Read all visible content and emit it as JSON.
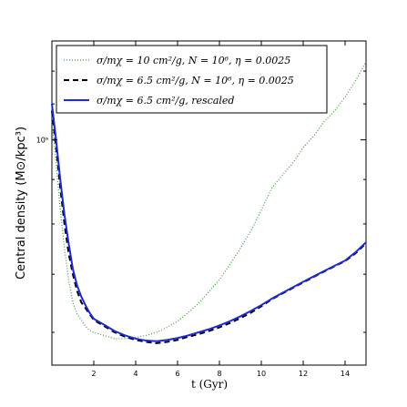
{
  "chart_data": {
    "type": "line",
    "xlabel": "t (Gyr)",
    "ylabel": "Central density (M⊙/kpc³)",
    "xlim": [
      0,
      15
    ],
    "ylim": [
      550000000,
      1300000000
    ],
    "yscale": "log",
    "x_ticks": [
      2,
      4,
      6,
      8,
      10,
      12,
      14
    ],
    "y_tick_labels": [
      "10⁹"
    ],
    "legend_position": "top",
    "grid": false,
    "series": [
      {
        "name": "σ/mχ = 10 cm²/g,  N = 10⁶,  η = 0.0025",
        "style": "dotted",
        "color": "#3a9a3a",
        "x": [
          0,
          0.2,
          0.4,
          0.6,
          0.8,
          1.0,
          1.2,
          1.4,
          1.6,
          1.8,
          2.0,
          2.5,
          3.0,
          3.5,
          4.0,
          4.5,
          5.0,
          5.5,
          6.0,
          6.5,
          7.0,
          7.5,
          8.0,
          8.5,
          9.0,
          9.5,
          10.0,
          10.5,
          11.0,
          11.5,
          12.0,
          12.5,
          13.0,
          13.5,
          14.0,
          14.5,
          15.0
        ],
        "y": [
          1050000000,
          940000000,
          830000000,
          750000000,
          690000000,
          650000000,
          630000000,
          620000000,
          610000000,
          603000000,
          600000000,
          595000000,
          590000000,
          590000000,
          592000000,
          595000000,
          600000000,
          608000000,
          618000000,
          632000000,
          648000000,
          668000000,
          690000000,
          718000000,
          750000000,
          785000000,
          830000000,
          880000000,
          910000000,
          940000000,
          980000000,
          1010000000,
          1050000000,
          1080000000,
          1120000000,
          1170000000,
          1230000000
        ]
      },
      {
        "name": "σ/mχ = 6.5 cm²/g,  N = 10⁶,  η = 0.0025",
        "style": "dashed",
        "color": "#000000",
        "x": [
          0,
          0.2,
          0.4,
          0.6,
          0.8,
          1.0,
          1.2,
          1.4,
          1.6,
          1.8,
          2.0,
          2.5,
          3.0,
          3.5,
          4.0,
          4.5,
          5.0,
          5.5,
          6.0,
          6.5,
          7.0,
          7.5,
          8.0,
          8.5,
          9.0,
          9.5,
          10.0,
          10.5,
          11.0,
          11.5,
          12.0,
          12.5,
          13.0,
          13.5,
          14.0,
          14.5,
          15.0
        ],
        "y": [
          1080000000,
          980000000,
          880000000,
          800000000,
          740000000,
          700000000,
          670000000,
          650000000,
          640000000,
          630000000,
          620000000,
          610000000,
          600000000,
          593000000,
          588000000,
          585000000,
          583000000,
          585000000,
          588000000,
          593000000,
          597000000,
          602000000,
          608000000,
          615000000,
          623000000,
          632000000,
          643000000,
          655000000,
          665000000,
          675000000,
          685000000,
          695000000,
          705000000,
          715000000,
          725000000,
          740000000,
          760000000
        ]
      },
      {
        "name": "σ/mχ = 6.5 cm²/g,  rescaled",
        "style": "solid",
        "color": "#1c2bd6",
        "x": [
          0,
          0.2,
          0.4,
          0.6,
          0.8,
          1.0,
          1.2,
          1.4,
          1.6,
          1.8,
          2.0,
          2.5,
          3.0,
          3.5,
          4.0,
          4.5,
          5.0,
          5.5,
          6.0,
          6.5,
          7.0,
          7.5,
          8.0,
          8.5,
          9.0,
          9.5,
          10.0,
          10.5,
          11.0,
          11.5,
          12.0,
          12.5,
          13.0,
          13.5,
          14.0,
          14.5,
          15.0
        ],
        "y": [
          1100000000,
          1000000000,
          900000000,
          820000000,
          760000000,
          710000000,
          680000000,
          660000000,
          645000000,
          632000000,
          622000000,
          612000000,
          602000000,
          595000000,
          590000000,
          587000000,
          586000000,
          588000000,
          591000000,
          595000000,
          600000000,
          605000000,
          611000000,
          618000000,
          626000000,
          635000000,
          645000000,
          656000000,
          666000000,
          676000000,
          686000000,
          696000000,
          706000000,
          716000000,
          726000000,
          742000000,
          762000000
        ]
      }
    ]
  }
}
